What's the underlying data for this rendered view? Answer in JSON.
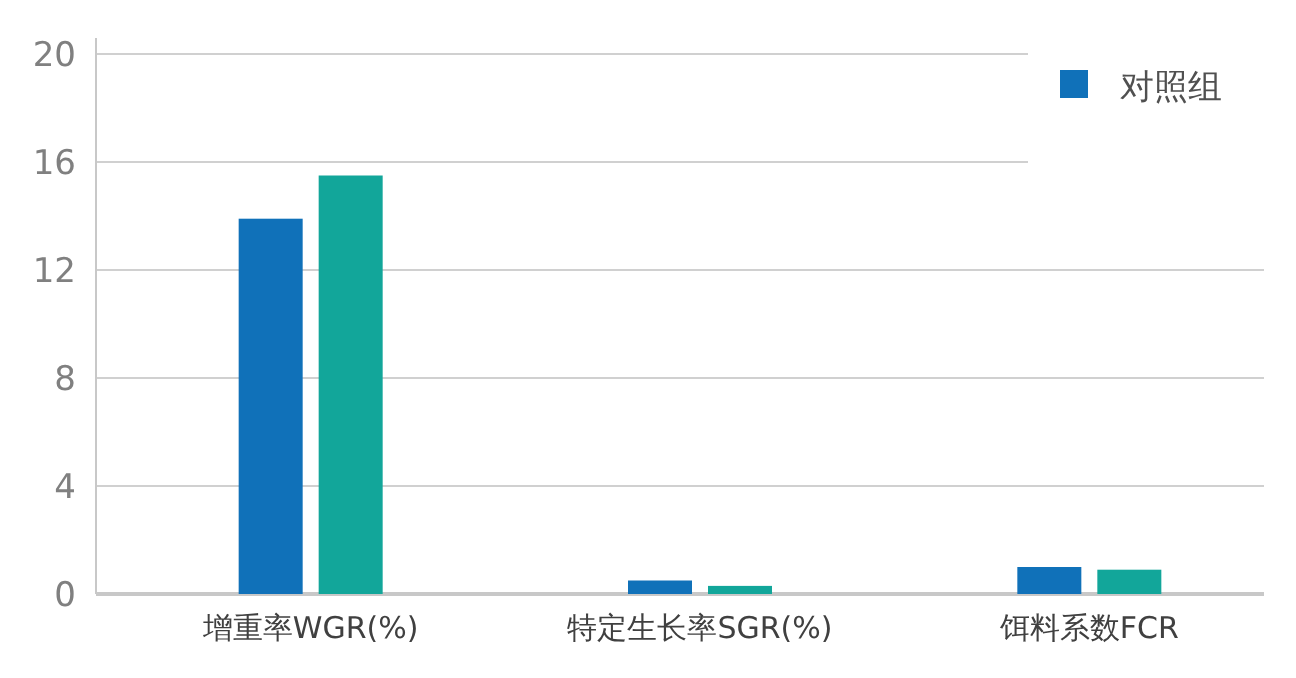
{
  "chart_data": {
    "type": "bar",
    "categories": [
      "增重率WGR(%)",
      "特定生长率SGR(%)",
      "饵料系数FCR"
    ],
    "series": [
      {
        "name": "对照组",
        "color": "#1071b9",
        "values": [
          13.9,
          0.5,
          1.0
        ]
      },
      {
        "color": "#12a69a",
        "values": [
          15.5,
          0.3,
          0.9
        ]
      }
    ],
    "ylim": [
      0,
      20
    ],
    "yticks": [
      0,
      4,
      8,
      12,
      16,
      20
    ],
    "grid": "y",
    "legend": "top right"
  }
}
